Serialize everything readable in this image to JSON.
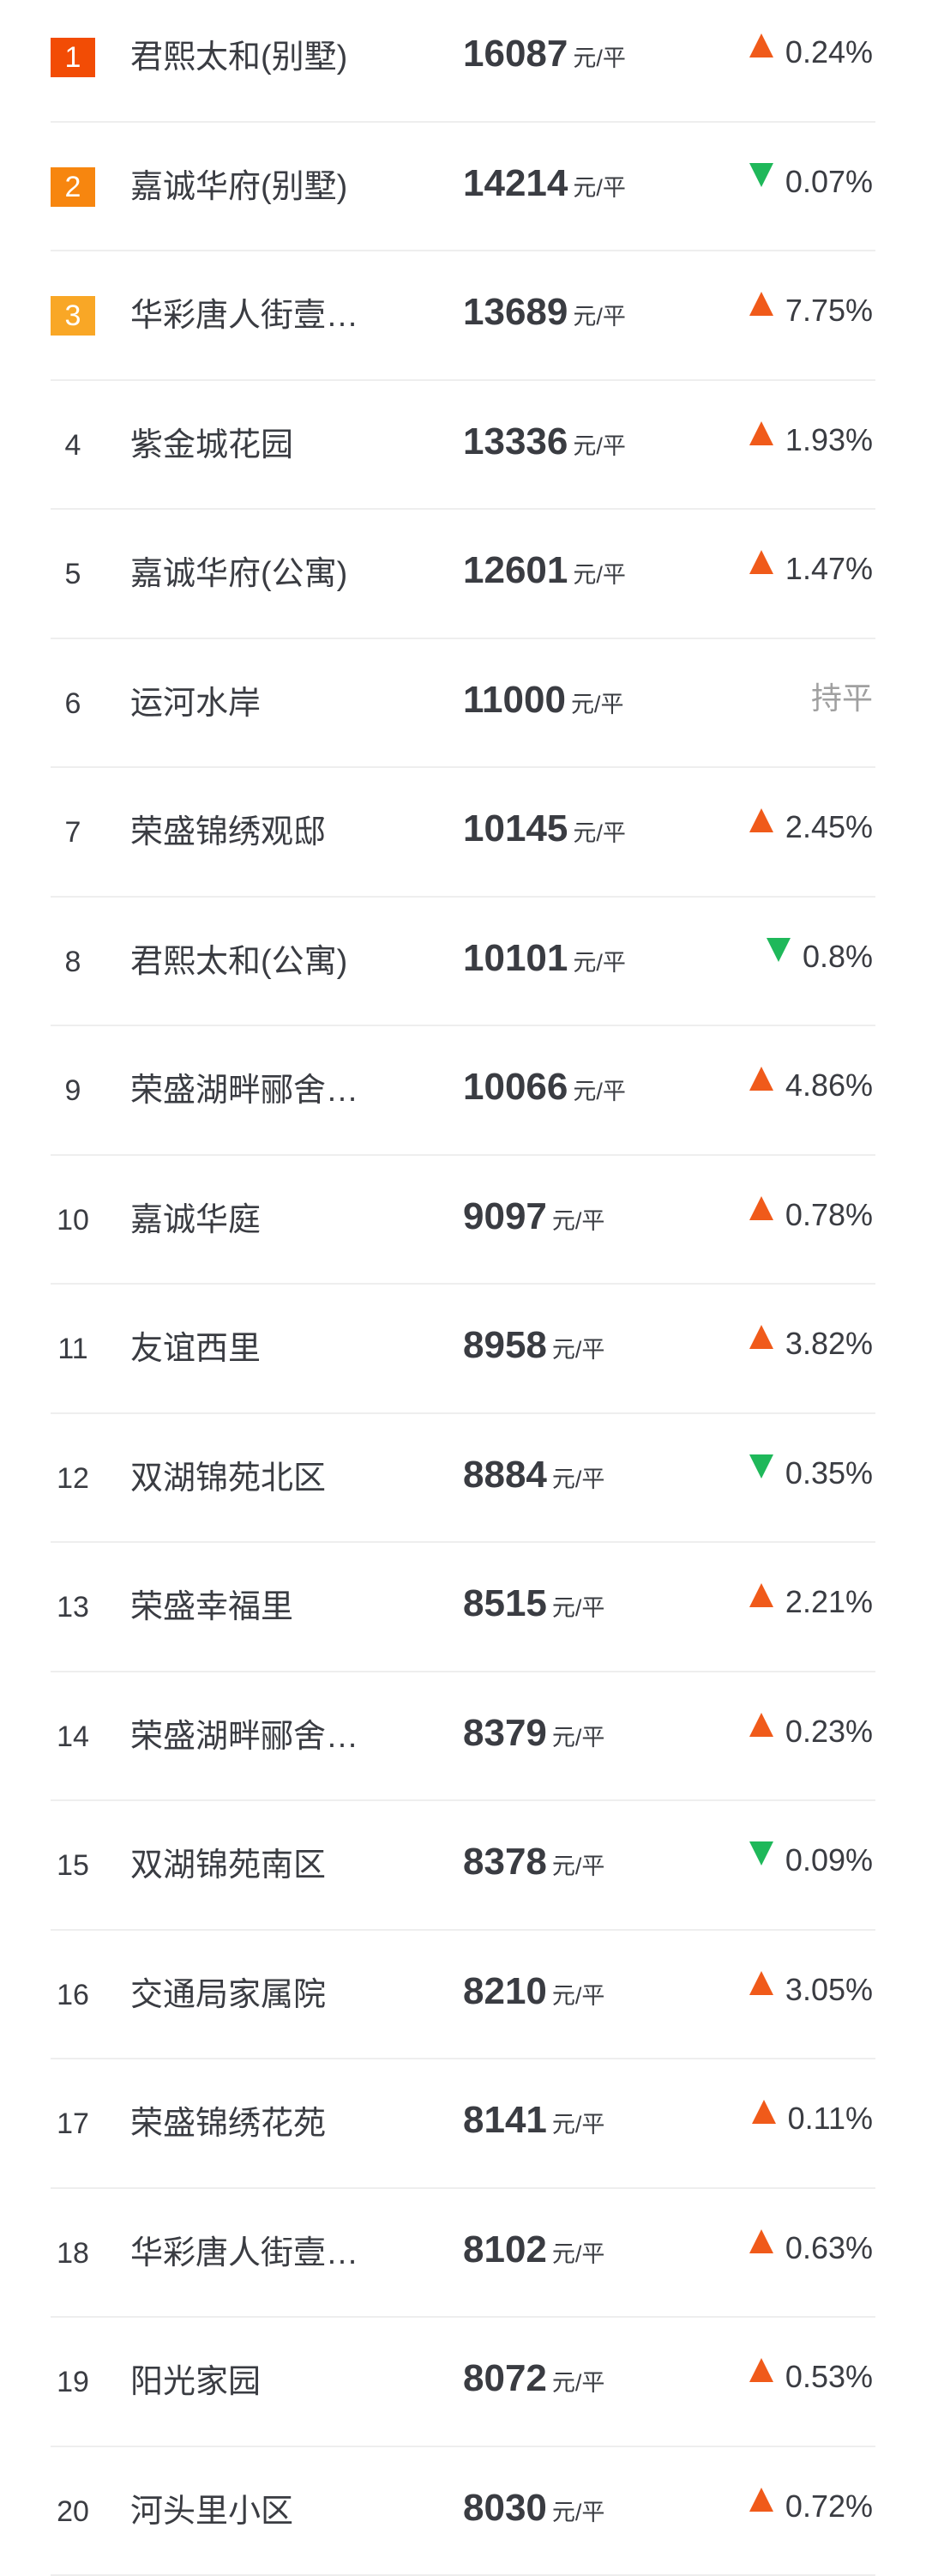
{
  "colors": {
    "rank1": "#f24c05",
    "rank2": "#f7860f",
    "rank3": "#f9a726",
    "up": "#f05a1a",
    "down": "#1fb85a",
    "flat": "#a0a0a0"
  },
  "unit": "元/平",
  "rows": [
    {
      "rank": "1",
      "name": "君熙太和(别墅)",
      "price": "16087",
      "dir": "up",
      "change": "0.24%"
    },
    {
      "rank": "2",
      "name": "嘉诚华府(别墅)",
      "price": "14214",
      "dir": "down",
      "change": "0.07%"
    },
    {
      "rank": "3",
      "name": "华彩唐人街壹…",
      "price": "13689",
      "dir": "up",
      "change": "7.75%"
    },
    {
      "rank": "4",
      "name": "紫金城花园",
      "price": "13336",
      "dir": "up",
      "change": "1.93%"
    },
    {
      "rank": "5",
      "name": "嘉诚华府(公寓)",
      "price": "12601",
      "dir": "up",
      "change": "1.47%"
    },
    {
      "rank": "6",
      "name": "运河水岸",
      "price": "11000",
      "dir": "flat",
      "change": "持平"
    },
    {
      "rank": "7",
      "name": "荣盛锦绣观邸",
      "price": "10145",
      "dir": "up",
      "change": "2.45%"
    },
    {
      "rank": "8",
      "name": "君熙太和(公寓)",
      "price": "10101",
      "dir": "down",
      "change": "0.8%"
    },
    {
      "rank": "9",
      "name": "荣盛湖畔郦舍…",
      "price": "10066",
      "dir": "up",
      "change": "4.86%"
    },
    {
      "rank": "10",
      "name": "嘉诚华庭",
      "price": "9097",
      "dir": "up",
      "change": "0.78%"
    },
    {
      "rank": "11",
      "name": "友谊西里",
      "price": "8958",
      "dir": "up",
      "change": "3.82%"
    },
    {
      "rank": "12",
      "name": "双湖锦苑北区",
      "price": "8884",
      "dir": "down",
      "change": "0.35%"
    },
    {
      "rank": "13",
      "name": "荣盛幸福里",
      "price": "8515",
      "dir": "up",
      "change": "2.21%"
    },
    {
      "rank": "14",
      "name": "荣盛湖畔郦舍…",
      "price": "8379",
      "dir": "up",
      "change": "0.23%"
    },
    {
      "rank": "15",
      "name": "双湖锦苑南区",
      "price": "8378",
      "dir": "down",
      "change": "0.09%"
    },
    {
      "rank": "16",
      "name": "交通局家属院",
      "price": "8210",
      "dir": "up",
      "change": "3.05%"
    },
    {
      "rank": "17",
      "name": "荣盛锦绣花苑",
      "price": "8141",
      "dir": "up",
      "change": "0.11%"
    },
    {
      "rank": "18",
      "name": "华彩唐人街壹…",
      "price": "8102",
      "dir": "up",
      "change": "0.63%"
    },
    {
      "rank": "19",
      "name": "阳光家园",
      "price": "8072",
      "dir": "up",
      "change": "0.53%"
    },
    {
      "rank": "20",
      "name": "河头里小区",
      "price": "8030",
      "dir": "up",
      "change": "0.72%"
    }
  ]
}
